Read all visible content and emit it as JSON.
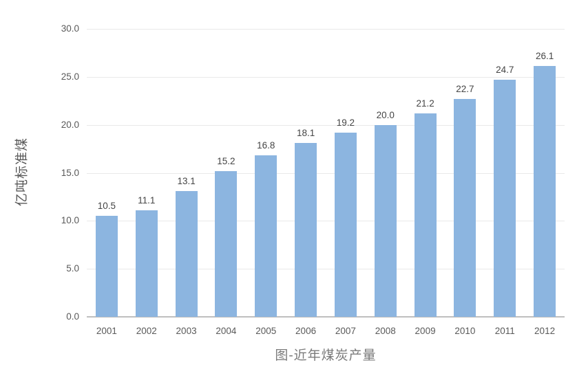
{
  "chart_data": {
    "type": "bar",
    "title": "图-近年煤炭产量",
    "xlabel": "",
    "ylabel": "亿吨标准煤",
    "categories": [
      "2001",
      "2002",
      "2003",
      "2004",
      "2005",
      "2006",
      "2007",
      "2008",
      "2009",
      "2010",
      "2011",
      "2012"
    ],
    "values": [
      10.5,
      11.1,
      13.1,
      15.2,
      16.8,
      18.1,
      19.2,
      20.0,
      21.2,
      22.7,
      24.7,
      26.1
    ],
    "data_labels": [
      "10.5",
      "11.1",
      "13.1",
      "15.2",
      "16.8",
      "18.1",
      "19.2",
      "20.0",
      "21.2",
      "22.7",
      "24.7",
      "26.1"
    ],
    "ylim": [
      0,
      30
    ],
    "ytick_labels": [
      "0.0",
      "5.0",
      "10.0",
      "15.0",
      "20.0",
      "25.0",
      "30.0"
    ],
    "grid": "horizontal",
    "legend_position": "none",
    "bar_color": "#8CB5E0",
    "gridline_color": "#e9e9e9",
    "axis_line_color": "#bfbfbf",
    "text_color": "#595959"
  }
}
